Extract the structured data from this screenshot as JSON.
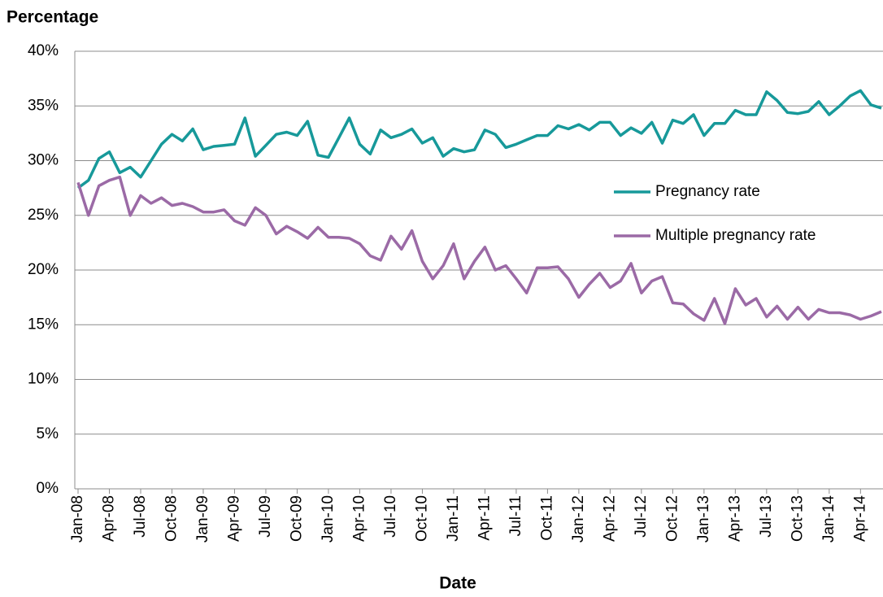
{
  "chart_data": {
    "type": "line",
    "y_label": "Percentage",
    "x_label": "Date",
    "categories": [
      "Jan-08",
      null,
      null,
      "Apr-08",
      null,
      null,
      "Jul-08",
      null,
      null,
      "Oct-08",
      null,
      null,
      "Jan-09",
      null,
      null,
      "Apr-09",
      null,
      null,
      "Jul-09",
      null,
      null,
      "Oct-09",
      null,
      null,
      "Jan-10",
      null,
      null,
      "Apr-10",
      null,
      null,
      "Jul-10",
      null,
      null,
      "Oct-10",
      null,
      null,
      "Jan-11",
      null,
      null,
      "Apr-11",
      null,
      null,
      "Jul-11",
      null,
      null,
      "Oct-11",
      null,
      null,
      "Jan-12",
      null,
      null,
      "Apr-12",
      null,
      null,
      "Jul-12",
      null,
      null,
      "Oct-12",
      null,
      null,
      "Jan-13",
      null,
      null,
      "Apr-13",
      null,
      null,
      "Jul-13",
      null,
      null,
      "Oct-13",
      null,
      null,
      "Jan-14",
      null,
      null,
      "Apr-14",
      null,
      null
    ],
    "series": [
      {
        "name": "Pregnancy rate",
        "color": "#17999a",
        "values": [
          27.5,
          28.2,
          30.2,
          30.8,
          28.9,
          29.4,
          28.5,
          30,
          31.5,
          32.4,
          31.8,
          32.9,
          31,
          31.3,
          31.4,
          31.5,
          33.9,
          30.4,
          31.4,
          32.4,
          32.6,
          32.3,
          33.6,
          30.5,
          30.3,
          32.1,
          33.9,
          31.5,
          30.6,
          32.8,
          32.1,
          32.4,
          32.9,
          31.6,
          32.1,
          30.4,
          31.1,
          30.8,
          31,
          32.8,
          32.4,
          31.2,
          31.5,
          31.9,
          32.3,
          32.3,
          33.2,
          32.9,
          33.3,
          32.8,
          33.5,
          33.5,
          32.3,
          33,
          32.5,
          33.5,
          31.6,
          33.7,
          33.4,
          34.2,
          32.3,
          33.4,
          33.4,
          34.6,
          34.2,
          34.2,
          36.3,
          35.5,
          34.4,
          34.3,
          34.5,
          35.4,
          34.2,
          35,
          35.9,
          36.4,
          35.1,
          34.8
        ]
      },
      {
        "name": "Multiple pregnancy rate",
        "color": "#9b6aa6",
        "values": [
          28,
          25,
          27.7,
          28.2,
          28.5,
          25,
          26.8,
          26.1,
          26.6,
          25.9,
          26.1,
          25.8,
          25.3,
          25.3,
          25.5,
          24.5,
          24.1,
          25.7,
          25,
          23.3,
          24,
          23.5,
          22.9,
          23.9,
          23,
          23,
          22.9,
          22.4,
          21.3,
          20.9,
          23.1,
          21.9,
          23.6,
          20.8,
          19.2,
          20.4,
          22.4,
          19.2,
          20.8,
          22.1,
          20,
          20.4,
          19.2,
          17.9,
          20.2,
          20.2,
          20.3,
          19.2,
          17.5,
          18.7,
          19.7,
          18.4,
          19,
          20.6,
          17.9,
          19,
          19.4,
          17,
          16.9,
          16,
          15.4,
          17.4,
          15.1,
          18.3,
          16.8,
          17.4,
          15.7,
          16.7,
          15.5,
          16.6,
          15.5,
          16.4,
          16.1,
          16.1,
          15.9,
          15.5,
          15.8,
          16.2
        ]
      }
    ],
    "ylim": [
      0,
      40
    ],
    "yticks": [
      {
        "value": 0,
        "label": "0%"
      },
      {
        "value": 5,
        "label": "5%"
      },
      {
        "value": 10,
        "label": "10%"
      },
      {
        "value": 15,
        "label": "15%"
      },
      {
        "value": 20,
        "label": "20%"
      },
      {
        "value": 25,
        "label": "25%"
      },
      {
        "value": 30,
        "label": "30%"
      },
      {
        "value": 35,
        "label": "35%"
      },
      {
        "value": 40,
        "label": "40%"
      }
    ],
    "grid": true
  }
}
